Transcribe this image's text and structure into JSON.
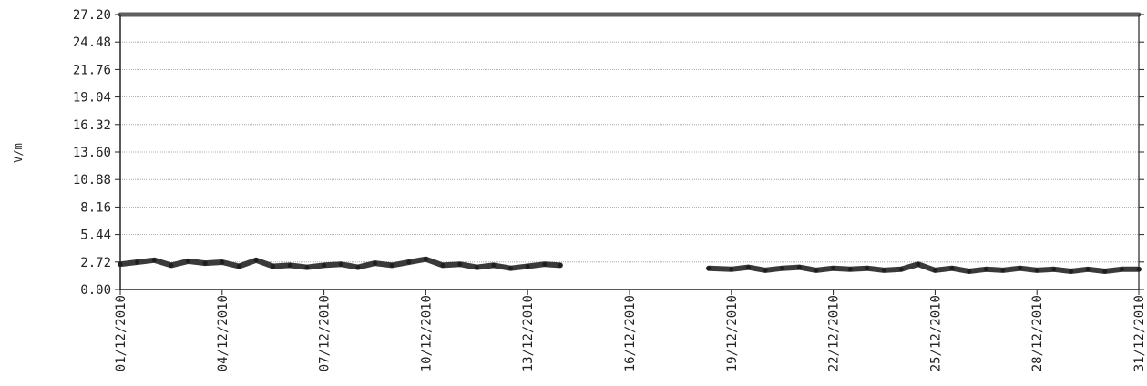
{
  "chart_data": {
    "type": "line",
    "title": "",
    "xlabel": "",
    "ylabel": "V/m",
    "ylim": [
      0,
      27.2
    ],
    "xlim": [
      "01/12/2010",
      "31/12/2010"
    ],
    "y_ticks": [
      "0.00",
      "2.72",
      "5.44",
      "8.16",
      "10.88",
      "13.60",
      "16.32",
      "19.04",
      "21.76",
      "24.48",
      "27.20"
    ],
    "x_ticks": [
      "01/12/2010",
      "04/12/2010",
      "07/12/2010",
      "10/12/2010",
      "13/12/2010",
      "16/12/2010",
      "19/12/2010",
      "22/12/2010",
      "25/12/2010",
      "28/12/2010",
      "31/12/2010"
    ],
    "grid": true,
    "legend": "none",
    "colors": {
      "series": "#3a3a3a",
      "limit": "#5f5f5f",
      "grid": "#9a9a9a",
      "axis": "#222222"
    },
    "series": [
      {
        "values": [
          {
            "x": "01/12/2010 00:00",
            "y": 2.5
          },
          {
            "x": "01/12/2010 12:00",
            "y": 2.7
          },
          {
            "x": "02/12/2010 00:00",
            "y": 2.9
          },
          {
            "x": "02/12/2010 12:00",
            "y": 2.4
          },
          {
            "x": "03/12/2010 00:00",
            "y": 2.8
          },
          {
            "x": "03/12/2010 12:00",
            "y": 2.6
          },
          {
            "x": "04/12/2010 00:00",
            "y": 2.7
          },
          {
            "x": "04/12/2010 12:00",
            "y": 2.3
          },
          {
            "x": "05/12/2010 00:00",
            "y": 2.9
          },
          {
            "x": "05/12/2010 12:00",
            "y": 2.3
          },
          {
            "x": "06/12/2010 00:00",
            "y": 2.4
          },
          {
            "x": "06/12/2010 12:00",
            "y": 2.2
          },
          {
            "x": "07/12/2010 00:00",
            "y": 2.4
          },
          {
            "x": "07/12/2010 12:00",
            "y": 2.5
          },
          {
            "x": "08/12/2010 00:00",
            "y": 2.2
          },
          {
            "x": "08/12/2010 12:00",
            "y": 2.6
          },
          {
            "x": "09/12/2010 00:00",
            "y": 2.4
          },
          {
            "x": "09/12/2010 12:00",
            "y": 2.7
          },
          {
            "x": "10/12/2010 00:00",
            "y": 3.0
          },
          {
            "x": "10/12/2010 12:00",
            "y": 2.4
          },
          {
            "x": "11/12/2010 00:00",
            "y": 2.5
          },
          {
            "x": "11/12/2010 12:00",
            "y": 2.2
          },
          {
            "x": "12/12/2010 00:00",
            "y": 2.4
          },
          {
            "x": "12/12/2010 12:00",
            "y": 2.1
          },
          {
            "x": "13/12/2010 00:00",
            "y": 2.3
          },
          {
            "x": "13/12/2010 12:00",
            "y": 2.5
          },
          {
            "x": "13/12/2010 23:00",
            "y": 2.4
          }
        ]
      },
      {
        "values": [
          {
            "x": "18/12/2010 08:00",
            "y": 2.1
          },
          {
            "x": "19/12/2010 00:00",
            "y": 2.0
          },
          {
            "x": "19/12/2010 12:00",
            "y": 2.2
          },
          {
            "x": "20/12/2010 00:00",
            "y": 1.9
          },
          {
            "x": "20/12/2010 12:00",
            "y": 2.1
          },
          {
            "x": "21/12/2010 00:00",
            "y": 2.2
          },
          {
            "x": "21/12/2010 12:00",
            "y": 1.9
          },
          {
            "x": "22/12/2010 00:00",
            "y": 2.1
          },
          {
            "x": "22/12/2010 12:00",
            "y": 2.0
          },
          {
            "x": "23/12/2010 00:00",
            "y": 2.1
          },
          {
            "x": "23/12/2010 12:00",
            "y": 1.9
          },
          {
            "x": "24/12/2010 00:00",
            "y": 2.0
          },
          {
            "x": "24/12/2010 12:00",
            "y": 2.5
          },
          {
            "x": "25/12/2010 00:00",
            "y": 1.9
          },
          {
            "x": "25/12/2010 12:00",
            "y": 2.1
          },
          {
            "x": "26/12/2010 00:00",
            "y": 1.8
          },
          {
            "x": "26/12/2010 12:00",
            "y": 2.0
          },
          {
            "x": "27/12/2010 00:00",
            "y": 1.9
          },
          {
            "x": "27/12/2010 12:00",
            "y": 2.1
          },
          {
            "x": "28/12/2010 00:00",
            "y": 1.9
          },
          {
            "x": "28/12/2010 12:00",
            "y": 2.0
          },
          {
            "x": "29/12/2010 00:00",
            "y": 1.8
          },
          {
            "x": "29/12/2010 12:00",
            "y": 2.0
          },
          {
            "x": "30/12/2010 00:00",
            "y": 1.8
          },
          {
            "x": "30/12/2010 12:00",
            "y": 2.0
          },
          {
            "x": "31/12/2010 00:00",
            "y": 2.0
          }
        ]
      },
      {
        "values": [
          {
            "x": "01/12/2010 00:00",
            "y": 27.2
          },
          {
            "x": "31/12/2010 00:00",
            "y": 27.2
          }
        ]
      }
    ]
  }
}
